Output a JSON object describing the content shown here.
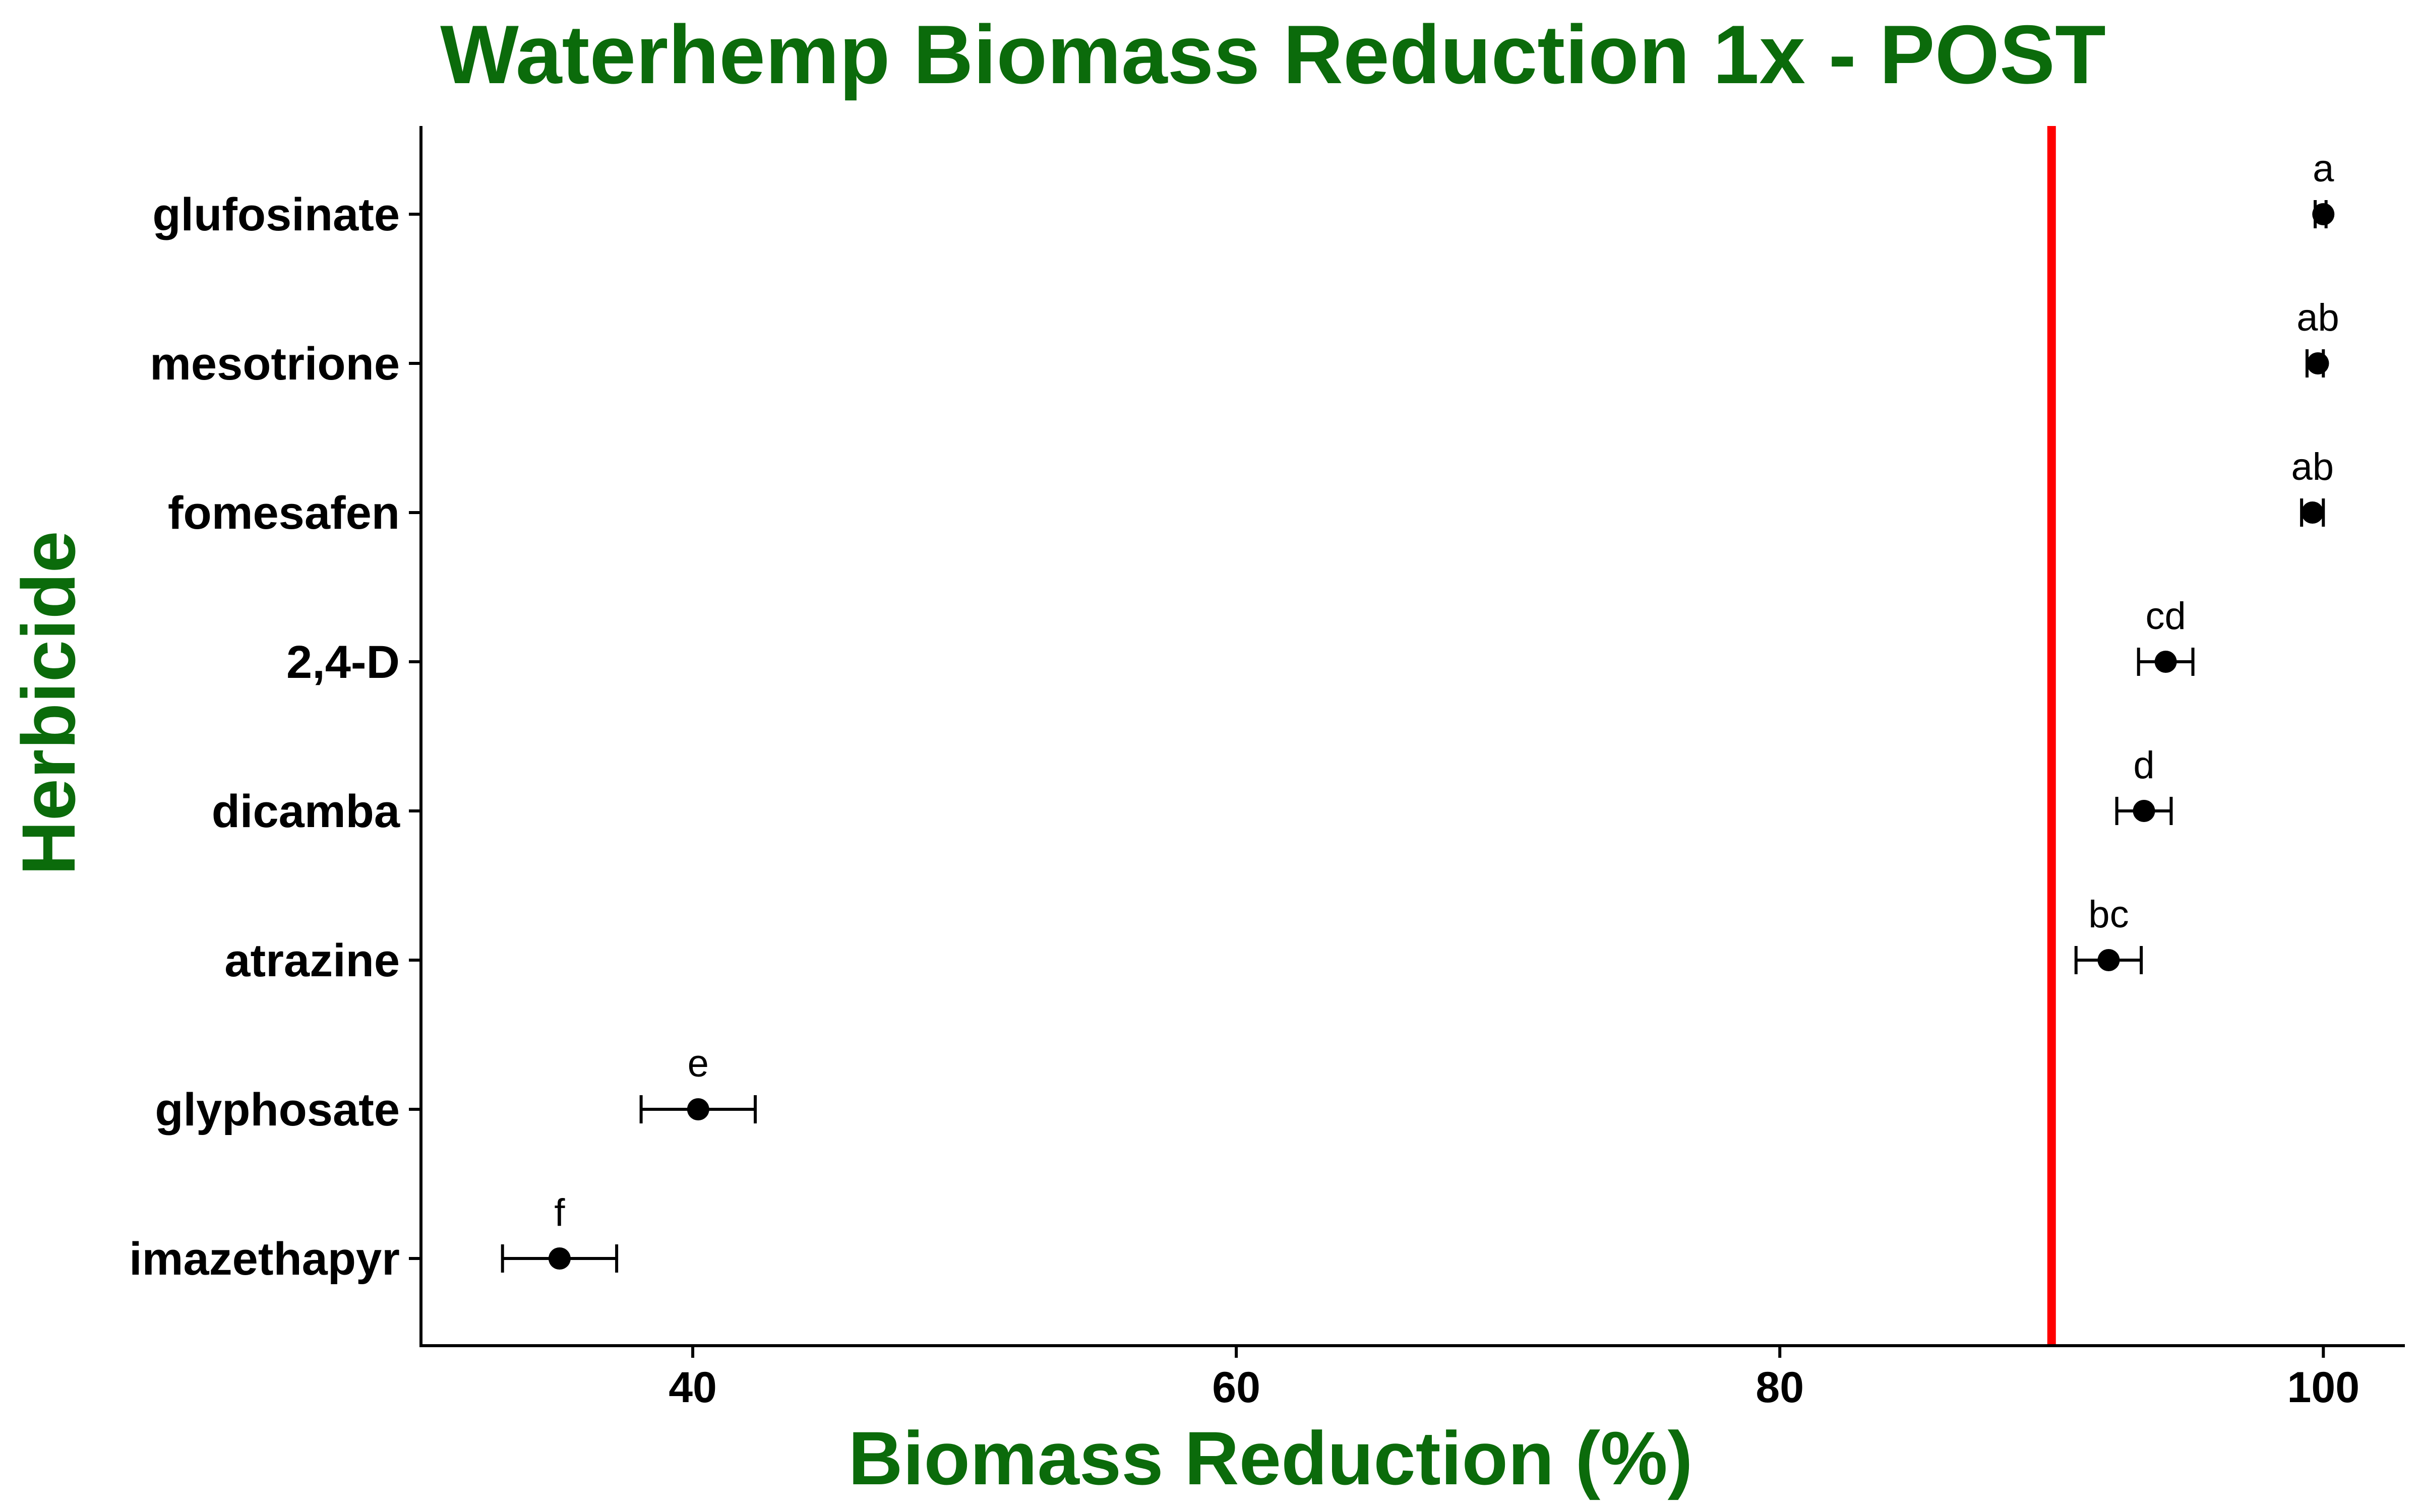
{
  "chart_data": {
    "type": "scatter",
    "title": "Waterhemp Biomass Reduction 1x - POST",
    "xlabel": "Biomass Reduction (%)",
    "ylabel": "Herbicide",
    "xlim": [
      30,
      103
    ],
    "xticks": [
      40,
      60,
      80,
      100
    ],
    "grid": false,
    "reference_line": {
      "x": 90,
      "color": "#ff0000"
    },
    "colors": {
      "title": "#0b6b0b",
      "points": "#000000",
      "reference": "#ff0000"
    },
    "categories": [
      "glufosinate",
      "mesotrione",
      "fomesafen",
      "2,4-D",
      "dicamba",
      "atrazine",
      "glyphosate",
      "imazethapyr"
    ],
    "values": [
      100,
      99.8,
      99.6,
      94.2,
      93.4,
      92.1,
      40.2,
      35.1
    ],
    "error_low": [
      99.7,
      99.4,
      99.2,
      93.2,
      92.4,
      90.9,
      38.1,
      33.0
    ],
    "error_high": [
      100.1,
      100.0,
      100.0,
      95.2,
      94.4,
      93.3,
      42.3,
      37.2
    ],
    "letters": [
      "a",
      "ab",
      "ab",
      "cd",
      "d",
      "bc",
      "e",
      "f"
    ]
  }
}
